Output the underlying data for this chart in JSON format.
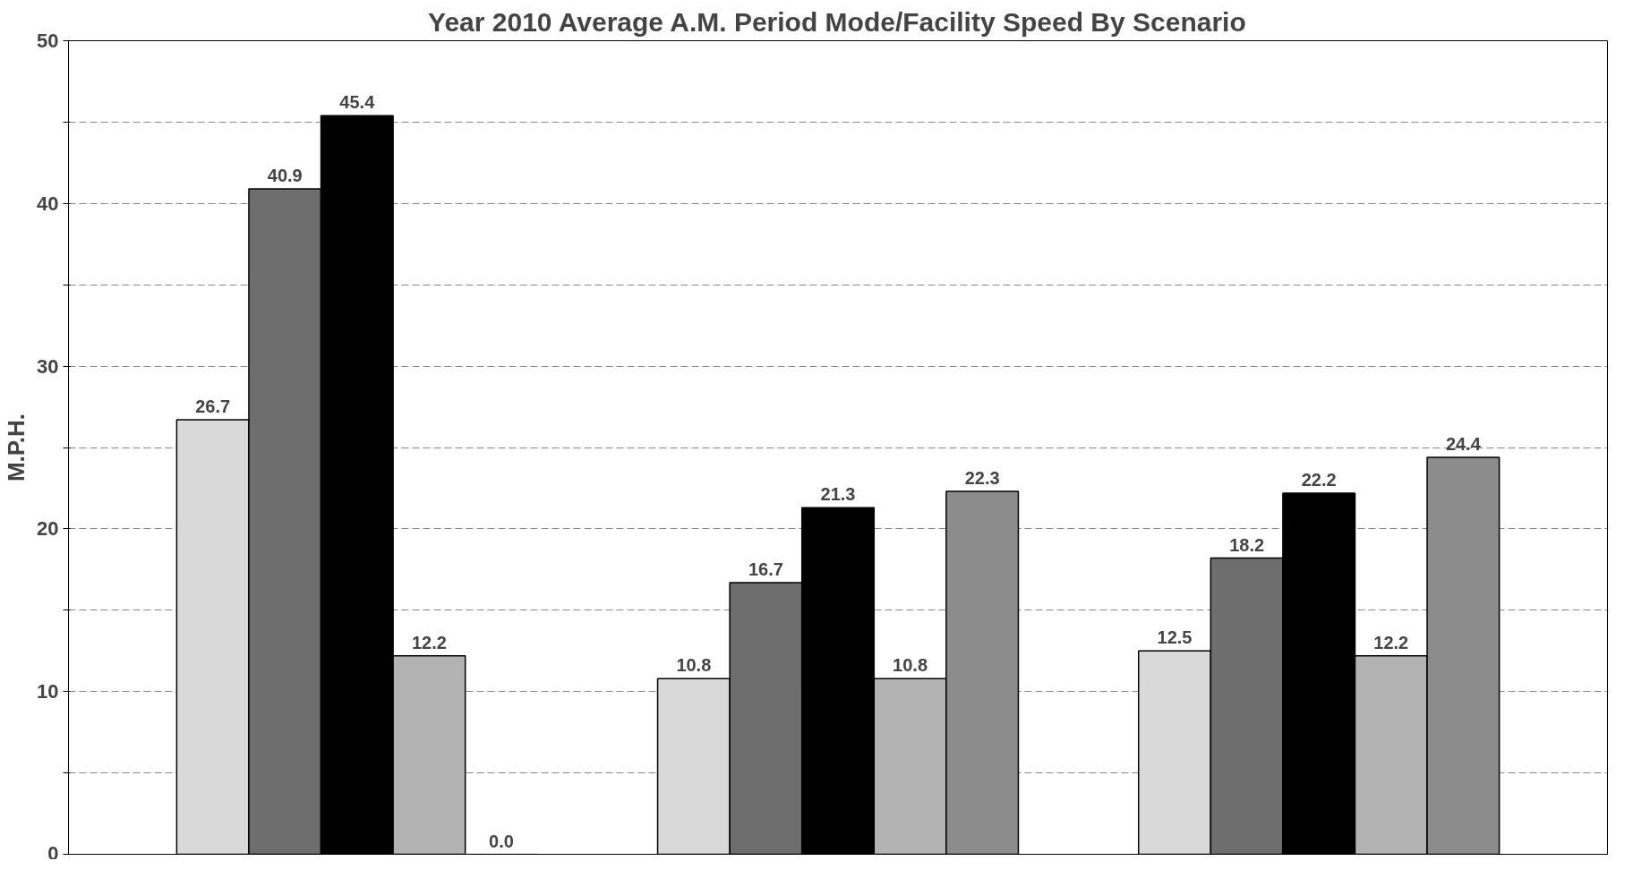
{
  "chart_data": {
    "type": "bar",
    "title": "Year 2010 Average A.M. Period Mode/Facility Speed By Scenario",
    "ylabel": "M.P.H.",
    "categories": [
      null,
      null,
      null
    ],
    "series": [
      {
        "color": "#d9d9d9",
        "values": [
          26.7,
          10.8,
          12.5
        ],
        "value_labels": [
          "26.7",
          "10.8",
          "12.5"
        ]
      },
      {
        "color": "#6e6e6e",
        "values": [
          40.9,
          16.7,
          18.2
        ],
        "value_labels": [
          "40.9",
          "16.7",
          "18.2"
        ]
      },
      {
        "color": "#000000",
        "values": [
          45.4,
          21.3,
          22.2
        ],
        "value_labels": [
          "45.4",
          "21.3",
          "22.2"
        ]
      },
      {
        "color": "#b3b3b3",
        "values": [
          12.2,
          10.8,
          12.2
        ],
        "value_labels": [
          "12.2",
          "10.8",
          "12.2"
        ]
      },
      {
        "color": "#8c8c8c",
        "values": [
          0,
          22.3,
          24.4
        ],
        "value_labels": [
          "0.0",
          "22.3",
          "24.4"
        ]
      }
    ],
    "ylim": [
      0,
      50
    ],
    "yticks": [
      0,
      {
        "value": 5,
        "label": null
      },
      10,
      {
        "value": 15,
        "label": null
      },
      20,
      {
        "value": 25,
        "label": null
      },
      30,
      {
        "value": 35,
        "label": null
      },
      40,
      {
        "value": 45,
        "label": null
      },
      50
    ],
    "grid": "y"
  }
}
